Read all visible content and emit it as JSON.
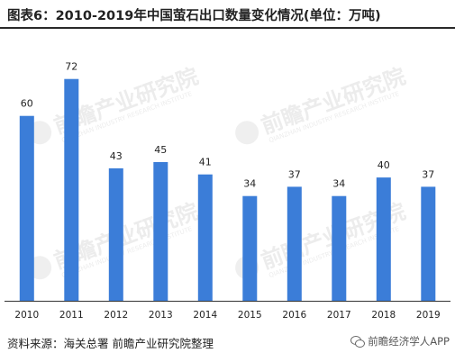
{
  "title": "图表6：2010-2019年中国萤石出口数量变化情况(单位：万吨)",
  "footer": {
    "source": "资料来源：海关总署 前瞻产业研究院整理",
    "wechat_label": "前瞻经济学人APP",
    "wechat_icon": "wechat-icon"
  },
  "watermark": {
    "text": "前瞻产业研究院",
    "sub": "QIANZHAN INDUSTRY RESEARCH INSTITUTE"
  },
  "colors": {
    "bar": "#3b7dd8",
    "axis": "#333333",
    "text": "#222222"
  },
  "chart_data": {
    "type": "bar",
    "title": "图表6：2010-2019年中国萤石出口数量变化情况(单位：万吨)",
    "xlabel": "",
    "ylabel": "",
    "unit": "万吨",
    "categories": [
      "2010",
      "2011",
      "2012",
      "2013",
      "2014",
      "2015",
      "2016",
      "2017",
      "2018",
      "2019"
    ],
    "values": [
      60,
      72,
      43,
      45,
      41,
      34,
      37,
      34,
      40,
      37
    ],
    "data_labels": [
      "60",
      "72",
      "43",
      "45",
      "41",
      "34",
      "37",
      "34",
      "40",
      "37"
    ],
    "ylim": [
      0,
      80
    ],
    "grid": false,
    "legend": "none"
  }
}
